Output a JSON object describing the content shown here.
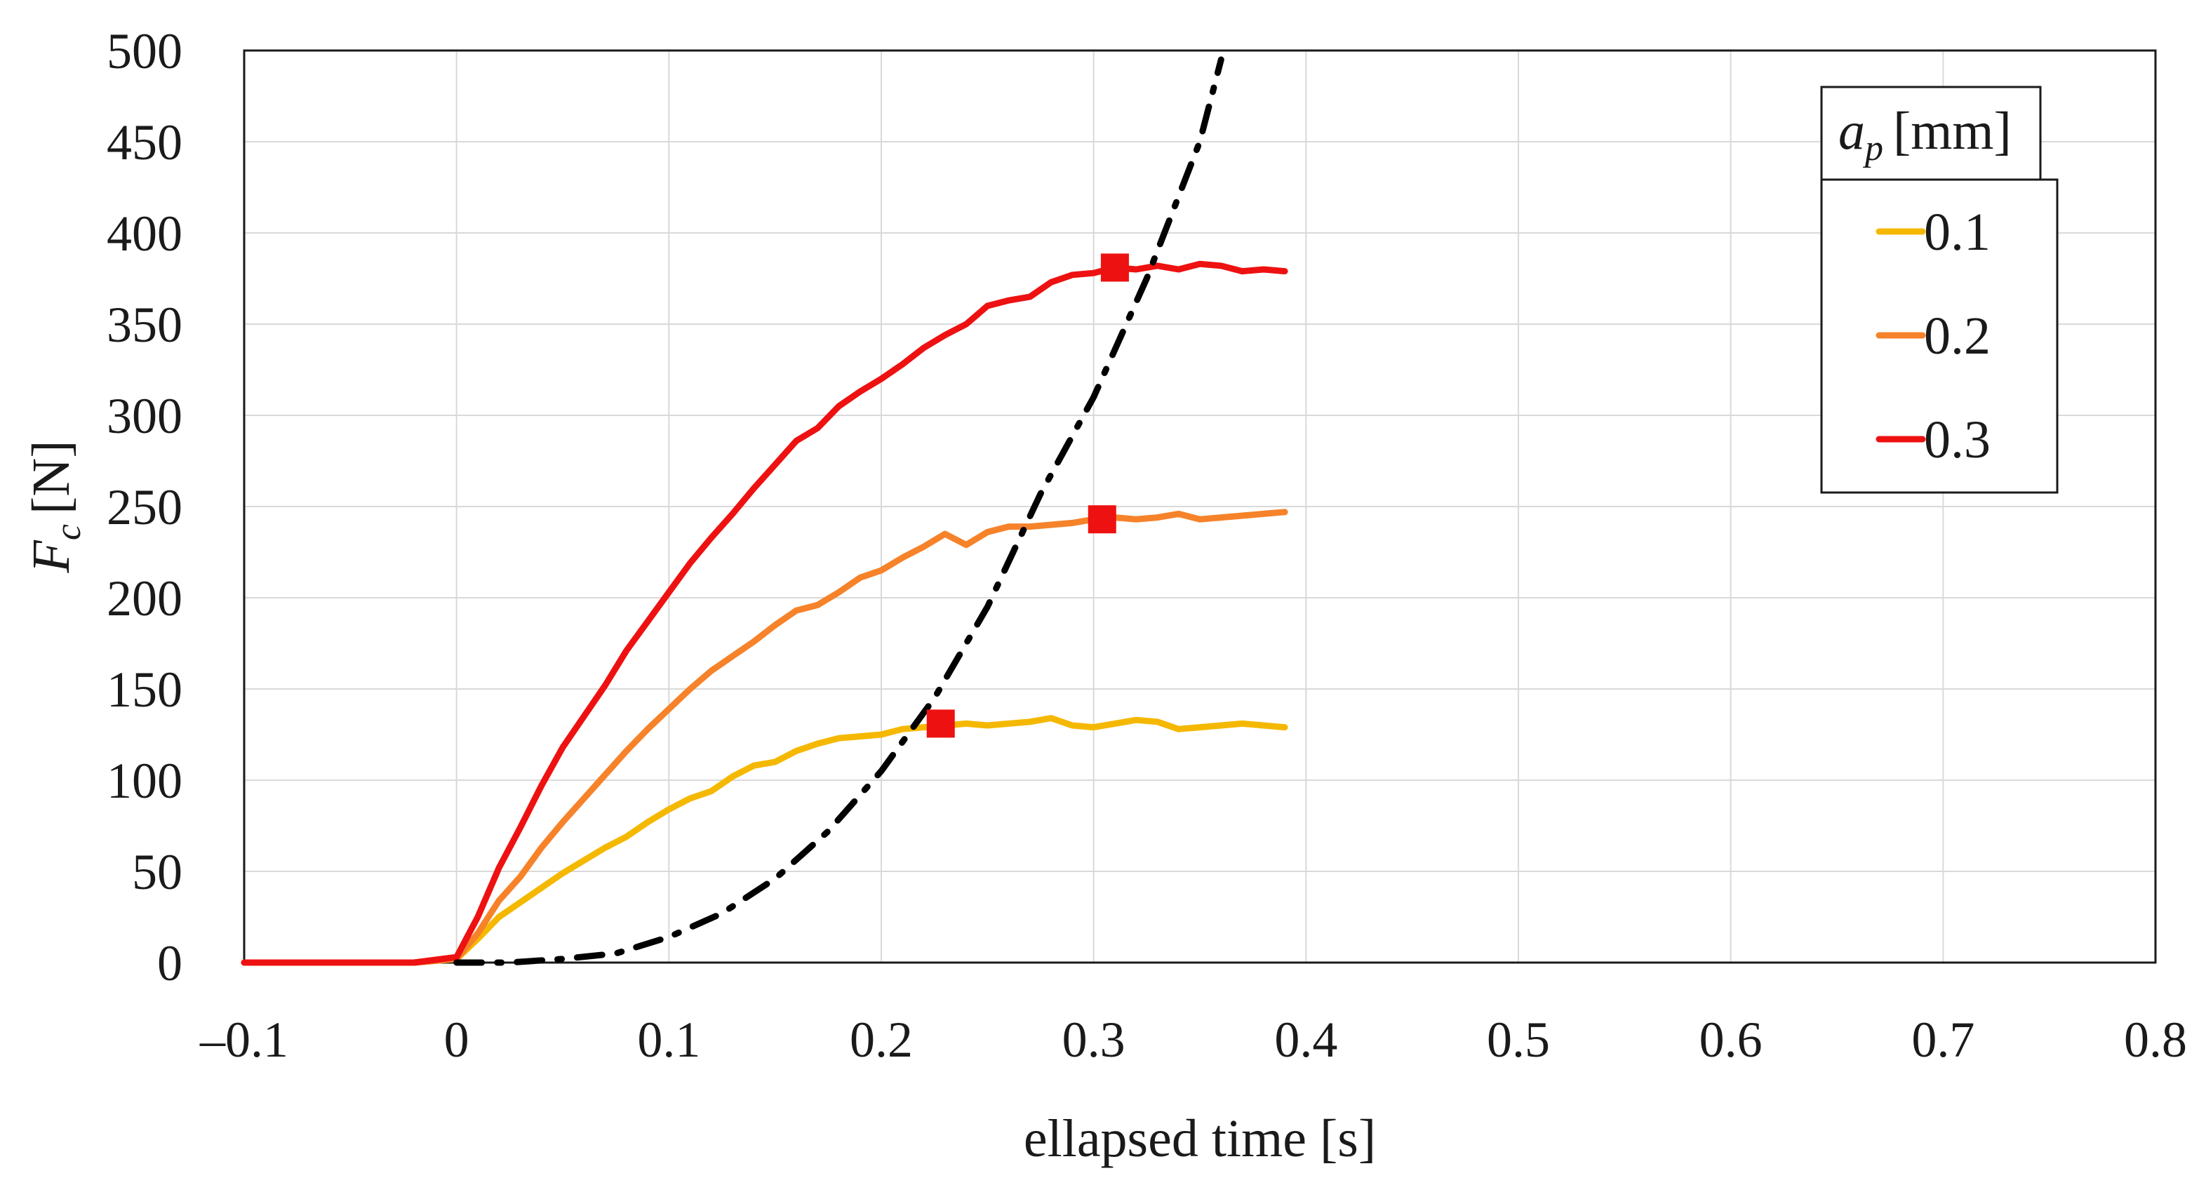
{
  "chart_data": {
    "type": "line",
    "xlabel": "ellapsed time [s]",
    "ylabel_main": "F",
    "ylabel_sub": "c",
    "ylabel_unit": "[N]",
    "xlim": [
      -0.1,
      0.8
    ],
    "ylim": [
      0,
      500
    ],
    "x_ticks": [
      -0.1,
      0,
      0.1,
      0.2,
      0.3,
      0.4,
      0.5,
      0.6,
      0.7,
      0.8
    ],
    "x_tick_labels": [
      "–0.1",
      "0",
      "0.1",
      "0.2",
      "0.3",
      "0.4",
      "0.5",
      "0.6",
      "0.7",
      "0.8"
    ],
    "y_ticks": [
      0,
      50,
      100,
      150,
      200,
      250,
      300,
      350,
      400,
      450,
      500
    ],
    "y_tick_labels": [
      "0",
      "50",
      "100",
      "150",
      "200",
      "250",
      "300",
      "350",
      "400",
      "450",
      "500"
    ],
    "grid": true,
    "legend": {
      "title_main": "a",
      "title_sub": "p",
      "title_unit": "[mm]",
      "position": "top-right"
    },
    "series": [
      {
        "name": "0.1",
        "color": "#F5B800",
        "x": [
          -0.1,
          -0.08,
          -0.06,
          -0.04,
          -0.02,
          0.0,
          0.01,
          0.02,
          0.03,
          0.04,
          0.05,
          0.06,
          0.07,
          0.08,
          0.09,
          0.1,
          0.11,
          0.12,
          0.13,
          0.14,
          0.15,
          0.16,
          0.17,
          0.18,
          0.19,
          0.2,
          0.21,
          0.22,
          0.23,
          0.24,
          0.25,
          0.26,
          0.27,
          0.28,
          0.29,
          0.3,
          0.31,
          0.32,
          0.33,
          0.34,
          0.35,
          0.36,
          0.37,
          0.38,
          0.39
        ],
        "y": [
          0,
          0,
          0,
          0,
          0,
          2,
          13,
          25,
          33,
          41,
          49,
          56,
          63,
          69,
          77,
          84,
          90,
          94,
          102,
          108,
          110,
          116,
          120,
          123,
          124,
          125,
          128,
          129,
          130,
          131,
          130,
          131,
          132,
          134,
          130,
          129,
          131,
          133,
          132,
          128,
          129,
          130,
          131,
          130,
          129
        ]
      },
      {
        "name": "0.2",
        "color": "#F6822A",
        "x": [
          -0.1,
          -0.08,
          -0.06,
          -0.04,
          -0.02,
          0.0,
          0.01,
          0.02,
          0.03,
          0.04,
          0.05,
          0.06,
          0.07,
          0.08,
          0.09,
          0.1,
          0.11,
          0.12,
          0.13,
          0.14,
          0.15,
          0.16,
          0.17,
          0.18,
          0.19,
          0.2,
          0.21,
          0.22,
          0.23,
          0.24,
          0.25,
          0.26,
          0.27,
          0.28,
          0.29,
          0.3,
          0.31,
          0.32,
          0.33,
          0.34,
          0.35,
          0.36,
          0.37,
          0.38,
          0.39
        ],
        "y": [
          0,
          0,
          0,
          0,
          0,
          2,
          16,
          34,
          47,
          63,
          77,
          90,
          103,
          116,
          128,
          139,
          150,
          160,
          168,
          176,
          185,
          193,
          196,
          203,
          211,
          215,
          222,
          228,
          235,
          229,
          236,
          239,
          239,
          240,
          241,
          243,
          244,
          243,
          244,
          246,
          243,
          244,
          245,
          246,
          247
        ]
      },
      {
        "name": "0.3",
        "color": "#EE1111",
        "x": [
          -0.1,
          -0.08,
          -0.06,
          -0.04,
          -0.02,
          0.0,
          0.01,
          0.02,
          0.03,
          0.04,
          0.05,
          0.06,
          0.07,
          0.08,
          0.09,
          0.1,
          0.11,
          0.12,
          0.13,
          0.14,
          0.15,
          0.16,
          0.17,
          0.18,
          0.19,
          0.2,
          0.21,
          0.22,
          0.23,
          0.24,
          0.25,
          0.26,
          0.27,
          0.28,
          0.29,
          0.3,
          0.31,
          0.32,
          0.33,
          0.34,
          0.35,
          0.36,
          0.37,
          0.38,
          0.39
        ],
        "y": [
          0,
          0,
          0,
          0,
          0,
          3,
          25,
          52,
          74,
          97,
          118,
          135,
          152,
          171,
          187,
          203,
          219,
          233,
          246,
          260,
          273,
          286,
          293,
          305,
          313,
          320,
          328,
          337,
          344,
          350,
          360,
          363,
          365,
          373,
          377,
          378,
          381,
          380,
          382,
          380,
          383,
          382,
          379,
          380,
          379
        ]
      }
    ],
    "reference_curve": {
      "style": "dash-dot",
      "color": "#000000",
      "x": [
        0.0,
        0.025,
        0.05,
        0.075,
        0.1,
        0.125,
        0.15,
        0.175,
        0.2,
        0.225,
        0.25,
        0.275,
        0.3,
        0.325,
        0.35,
        0.36
      ],
      "y": [
        0,
        0,
        2,
        5,
        14,
        27,
        46,
        72,
        105,
        145,
        195,
        257,
        310,
        375,
        450,
        495
      ]
    },
    "markers": [
      {
        "series": "0.1",
        "x": 0.228,
        "y": 131,
        "shape": "square",
        "color": "#EE1111"
      },
      {
        "series": "0.2",
        "x": 0.304,
        "y": 243,
        "shape": "square",
        "color": "#EE1111"
      },
      {
        "series": "0.3",
        "x": 0.31,
        "y": 381,
        "shape": "square",
        "color": "#EE1111"
      }
    ]
  }
}
